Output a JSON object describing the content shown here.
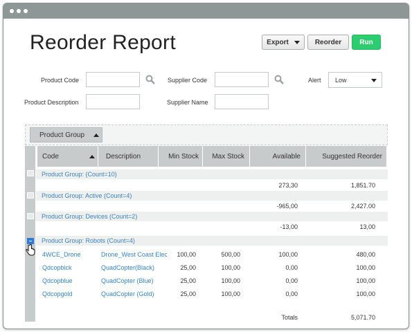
{
  "page": {
    "title": "Reorder Report"
  },
  "toolbar": {
    "export_label": "Export",
    "reorder_label": "Reorder",
    "run_label": "Run"
  },
  "filters": {
    "product_code_label": "Product Code",
    "supplier_code_label": "Supplier Code",
    "alert_label": "Alert",
    "alert_value": "Low",
    "product_description_label": "Product Description",
    "supplier_name_label": "Supplier Name"
  },
  "grouping": {
    "label": "Product Group"
  },
  "columns": {
    "code": "Code",
    "description": "Description",
    "min_stock": "Min Stock",
    "max_stock": "Max Stock",
    "available": "Available",
    "suggested_reorder": "Suggested Reorder"
  },
  "groups": [
    {
      "label": "Product Group: (Count=10)",
      "available": "273,30",
      "suggested": "1,851.70"
    },
    {
      "label": "Product Group: Active (Count=4)",
      "available": "-965,00",
      "suggested": "2,427.00"
    },
    {
      "label": "Product Group: Devices (Count=2)",
      "available": "-13,00",
      "suggested": "13,00"
    },
    {
      "label": "Product Group: Robots (Count=4)"
    }
  ],
  "rows": [
    {
      "code": "4WCE_Drone",
      "description": "Drone_West Coast Elec",
      "min": "100,00",
      "max": "500,00",
      "available": "100,00",
      "suggested": "480,00"
    },
    {
      "code": "Qdcopbick",
      "description": "QuadCopter(Black)",
      "min": "25,00",
      "max": "100,00",
      "available": "0,00",
      "suggested": "100,00"
    },
    {
      "code": "Qdcopblue",
      "description": "QuadCopter (Blue)",
      "min": "25,00",
      "max": "100,00",
      "available": "0,00",
      "suggested": "100,00"
    },
    {
      "code": "Qdcopgold",
      "description": "QuadCopter (Gold)",
      "min": "25,00",
      "max": "100,00",
      "available": "0,00",
      "suggested": "100,00"
    }
  ],
  "totals": {
    "label": "Totals",
    "suggested": "5,071.70"
  },
  "colors": {
    "accent": "#2ecc71",
    "link": "#3b82b8",
    "header": "#c7cbcb",
    "titlebar": "#8e9696"
  },
  "icons": [
    "search-icon",
    "caret-down-icon",
    "caret-up-icon",
    "expand-icon",
    "collapse-icon",
    "hand-cursor-icon"
  ]
}
